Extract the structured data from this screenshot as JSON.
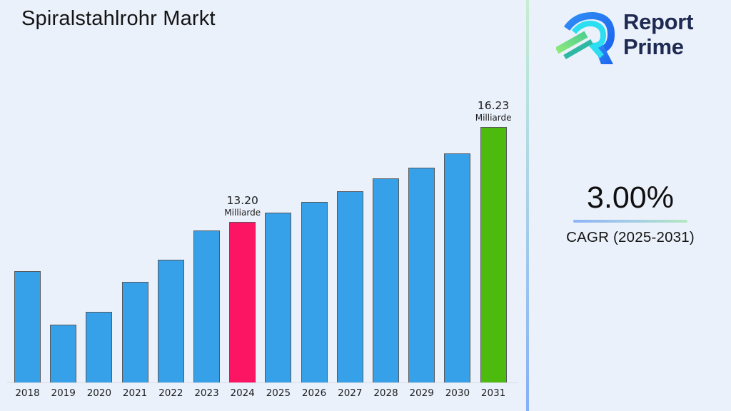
{
  "page": {
    "background": "#ebf1fb"
  },
  "header": {
    "title": "Spiralstahlrohr Markt"
  },
  "logo": {
    "line1": "Report",
    "line2": "Prime",
    "text_color": "#1e2a52"
  },
  "cagr": {
    "value": "3.00%",
    "label": "CAGR (2025-2031)"
  },
  "chart_data": {
    "type": "bar",
    "title": "Spiralstahlrohr Markt",
    "unit_label": "Milliarde",
    "categories": [
      "2018",
      "2019",
      "2020",
      "2021",
      "2022",
      "2023",
      "2024",
      "2025",
      "2026",
      "2027",
      "2028",
      "2029",
      "2030",
      "2031"
    ],
    "values": [
      11.63,
      9.92,
      10.33,
      11.29,
      11.99,
      12.93,
      13.2,
      13.49,
      13.84,
      14.18,
      14.59,
      14.93,
      15.39,
      16.23
    ],
    "labeled_points": [
      {
        "category": "2024",
        "value_label": "13.20",
        "unit": "Milliarde"
      },
      {
        "category": "2031",
        "value_label": "16.23",
        "unit": "Milliarde"
      }
    ],
    "colors": {
      "default": "#36a0e8",
      "2024": "#fb1562",
      "2031": "#4cbb0e"
    },
    "xlabel": "",
    "ylabel": "",
    "value_axis_visible": false,
    "gridlines": false,
    "legend": "none"
  }
}
